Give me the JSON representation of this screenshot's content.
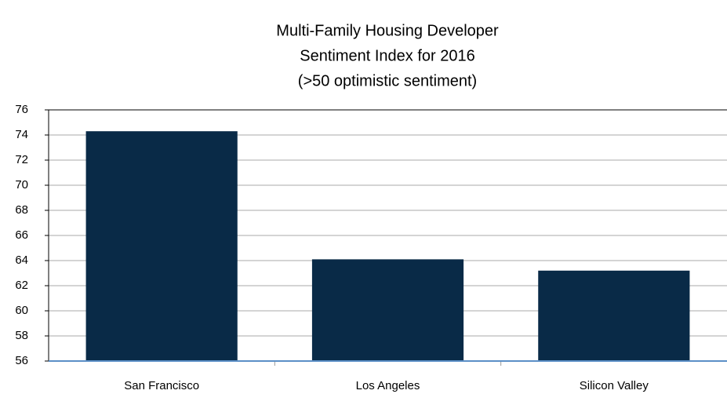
{
  "chart_data": {
    "type": "bar",
    "title": [
      "Multi-Family Housing Developer",
      "Sentiment Index for 2016"
    ],
    "subtitle": "(>50 optimistic sentiment)",
    "categories": [
      "San Francisco",
      "Los Angeles",
      "Silicon Valley"
    ],
    "values": [
      74.3,
      64.1,
      63.2
    ],
    "color": "#092a47",
    "ylim": [
      56,
      76
    ],
    "yticks": [
      56,
      58,
      60,
      62,
      64,
      66,
      68,
      70,
      72,
      74,
      76
    ],
    "grid": true
  }
}
